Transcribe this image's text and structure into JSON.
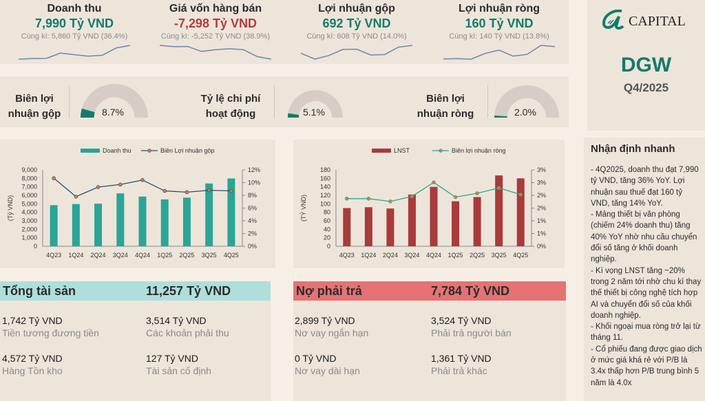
{
  "brand": {
    "logo_text": "CAPITAL",
    "ticker": "DGW",
    "period": "Q4/2025"
  },
  "colors": {
    "green": "#147a6c",
    "red": "#b83a3a",
    "teal": "#2aa597",
    "bar_red": "#a93b3b",
    "line": "#2f4a6b",
    "gauge_bg": "#d8ccc6",
    "assets_hdr": "#aedfdc",
    "liab_hdr": "#e57373",
    "spark": "#6b86ad"
  },
  "kpis": [
    {
      "title": "Doanh thu",
      "value": "7,990 Tỷ VND",
      "compare": "Cùng kì: 5,860 Tỷ VND (36.4%)",
      "tone": "green",
      "spark": [
        4840,
        4970,
        5020,
        6230,
        5860,
        5520,
        5730,
        7400,
        7990
      ]
    },
    {
      "title": "Giá vốn hàng bán",
      "value": "-7,298 Tỷ VND",
      "compare": "Cùng kì: -5,252 Tỷ VND (38.9%)",
      "tone": "red",
      "spark": [
        -4320,
        -4583,
        -4554,
        -5628,
        -5252,
        -5039,
        -5242,
        -6747,
        -7298
      ]
    },
    {
      "title": "Lợi nhuận gộp",
      "value": "692 Tỷ VND",
      "compare": "Cùng kì: 608 Tỷ VND (14.0%)",
      "tone": "green",
      "spark": [
        520,
        387,
        466,
        602,
        608,
        481,
        488,
        653,
        692
      ]
    },
    {
      "title": "Lợi nhuận ròng",
      "value": "160 Tỷ VND",
      "compare": "Cùng kì: 140 Tỷ VND (13.8%)",
      "tone": "green",
      "spark": [
        90,
        92,
        89,
        122,
        140,
        106,
        116,
        167,
        160
      ]
    }
  ],
  "gauges": [
    {
      "label1": "Biên lợi",
      "label2": "nhuận gộp",
      "value": "8.7%",
      "fraction": 0.087
    },
    {
      "label1": "Tỷ lệ chi phí",
      "label2": "hoạt động",
      "value": "5.1%",
      "fraction": 0.051
    },
    {
      "label1": "Biên lợi",
      "label2": "nhuận ròng",
      "value": "2.0%",
      "fraction": 0.02
    }
  ],
  "chart_data": [
    {
      "type": "bar",
      "categories": [
        "4Q23",
        "1Q24",
        "2Q24",
        "3Q24",
        "4Q24",
        "1Q25",
        "2Q25",
        "3Q25",
        "4Q25"
      ],
      "series": [
        {
          "name": "Doanh thu",
          "kind": "bar",
          "values": [
            4840,
            4970,
            5020,
            6230,
            5860,
            5520,
            5730,
            7400,
            7990
          ]
        },
        {
          "name": "Biên Lợi nhuận gộp",
          "kind": "line",
          "axis": "right",
          "values": [
            10.7,
            7.8,
            9.3,
            9.7,
            10.4,
            8.7,
            8.5,
            8.8,
            8.7
          ]
        }
      ],
      "ylabel": "(Tỷ VND)",
      "ylim": [
        0,
        9000
      ],
      "yticks": [
        "0",
        "1,000",
        "2,000",
        "3,000",
        "4,000",
        "5,000",
        "6,000",
        "7,000",
        "8,000",
        "9,000"
      ],
      "y2lim": [
        0,
        12
      ],
      "y2ticks": [
        "0%",
        "2%",
        "4%",
        "6%",
        "8%",
        "10%",
        "12%"
      ],
      "legend": "top"
    },
    {
      "type": "bar",
      "categories": [
        "4Q23",
        "1Q24",
        "2Q24",
        "3Q24",
        "4Q24",
        "1Q25",
        "2Q25",
        "3Q25",
        "4Q25"
      ],
      "series": [
        {
          "name": "LNST",
          "kind": "bar",
          "values": [
            90,
            92,
            89,
            122,
            140,
            106,
            116,
            167,
            160
          ]
        },
        {
          "name": "Biên lợi nhuận ròng",
          "kind": "line",
          "axis": "right",
          "values": [
            1.87,
            1.87,
            1.76,
            1.96,
            2.51,
            1.93,
            2.08,
            2.29,
            2.03
          ]
        }
      ],
      "ylabel": "(TỶ VND)",
      "ylim": [
        0,
        180
      ],
      "yticks": [
        "0",
        "20",
        "40",
        "60",
        "80",
        "100",
        "120",
        "140",
        "160",
        "180"
      ],
      "y2lim": [
        0,
        3
      ],
      "y2ticks": [
        "0%",
        "1%",
        "1%",
        "2%",
        "2%",
        "3%",
        "3%"
      ],
      "legend": "top"
    }
  ],
  "assets": {
    "title": "Tổng tài sản",
    "total": "11,257 Tỷ VND",
    "items": [
      {
        "value": "1,742 Tỷ VND",
        "label": "Tiền tương đương tiền"
      },
      {
        "value": "3,514 Tỷ VND",
        "label": "Các khoản phải thu"
      },
      {
        "value": "4,572 Tỷ VND",
        "label": "Hàng Tồn kho"
      },
      {
        "value": "127 Tỷ VND",
        "label": "Tài sản cố định"
      }
    ]
  },
  "liabilities": {
    "title": "Nợ phải trả",
    "total": "7,784 Tỷ VND",
    "items": [
      {
        "value": "2,899 Tỷ VND",
        "label": "Nơ vay ngắn hạn"
      },
      {
        "value": "3,524 Tỷ VND",
        "label": "Phải trả người bán"
      },
      {
        "value": "0 Tỷ VND",
        "label": "Nơ vay dài hạn"
      },
      {
        "value": "1,361 Tỷ VND",
        "label": "Phải trả khác"
      }
    ]
  },
  "notes": {
    "title": "Nhận định nhanh",
    "text": " - 4Q2025, doanh thu đạt 7,990 tỷ VND, tăng 36% YoY. Lợi nhuận sau thuế đạt 160 tỷ VND, tăng 14% YoY.\n - Mảng thiết bị văn phòng (chiếm 24% doanh thu) tăng 40% YoY nhờ nhu cầu chuyển đổi số tăng ở khối doanh nghiệp.\n- Kì vọng LNST tăng ~20% trong 2 năm tới nhờ chu kì thay thế thiết bị công nghệ tích hợp AI và chuyển đổi số của khối doanh nghiệp.\n- Khối ngoại mua ròng trở lại từ tháng 11.\n- Cổ phiếu đang được giao dịch ở mức giá khá rẻ với P/B là 3.4x thấp hơn P/B trung bình 5 năm là 4.0x"
  }
}
